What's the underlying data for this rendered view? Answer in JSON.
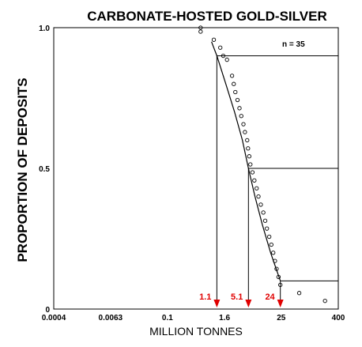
{
  "chart_data": {
    "type": "scatter",
    "title": "CARBONATE-HOSTED GOLD-SILVER",
    "xlabel": "MILLION TONNES",
    "ylabel": "PROPORTION OF DEPOSITS",
    "x_scale": "log",
    "xlim": [
      0.0004,
      400
    ],
    "ylim": [
      0,
      1
    ],
    "x_ticks": [
      "0.0004",
      "0.0063",
      "0.1",
      "1.6",
      "25",
      "400"
    ],
    "y_ticks": [
      "0",
      "0.5",
      "1.0"
    ],
    "n_label": "n = 35",
    "observed_points": [
      {
        "x": 0.5,
        "y": 1.0
      },
      {
        "x": 0.5,
        "y": 0.986
      },
      {
        "x": 0.95,
        "y": 0.957
      },
      {
        "x": 1.3,
        "y": 0.929
      },
      {
        "x": 1.5,
        "y": 0.9
      },
      {
        "x": 1.8,
        "y": 0.886
      },
      {
        "x": 2.3,
        "y": 0.829
      },
      {
        "x": 2.5,
        "y": 0.8
      },
      {
        "x": 2.7,
        "y": 0.771
      },
      {
        "x": 3.0,
        "y": 0.743
      },
      {
        "x": 3.3,
        "y": 0.714
      },
      {
        "x": 3.6,
        "y": 0.686
      },
      {
        "x": 4.0,
        "y": 0.657
      },
      {
        "x": 4.3,
        "y": 0.629
      },
      {
        "x": 4.8,
        "y": 0.6
      },
      {
        "x": 5.0,
        "y": 0.571
      },
      {
        "x": 5.3,
        "y": 0.543
      },
      {
        "x": 5.6,
        "y": 0.514
      },
      {
        "x": 6.2,
        "y": 0.486
      },
      {
        "x": 6.8,
        "y": 0.457
      },
      {
        "x": 7.6,
        "y": 0.429
      },
      {
        "x": 8.3,
        "y": 0.4
      },
      {
        "x": 9.3,
        "y": 0.371
      },
      {
        "x": 10.5,
        "y": 0.343
      },
      {
        "x": 11.5,
        "y": 0.314
      },
      {
        "x": 12.5,
        "y": 0.286
      },
      {
        "x": 14.0,
        "y": 0.257
      },
      {
        "x": 15.5,
        "y": 0.229
      },
      {
        "x": 17.0,
        "y": 0.2
      },
      {
        "x": 18.5,
        "y": 0.171
      },
      {
        "x": 20.0,
        "y": 0.143
      },
      {
        "x": 22.0,
        "y": 0.114
      },
      {
        "x": 24.0,
        "y": 0.086
      },
      {
        "x": 60.0,
        "y": 0.057
      },
      {
        "x": 210.0,
        "y": 0.029
      }
    ],
    "fitted_curve": [
      {
        "x": 0.85,
        "y": 0.95
      },
      {
        "x": 1.1,
        "y": 0.9
      },
      {
        "x": 1.7,
        "y": 0.8
      },
      {
        "x": 2.6,
        "y": 0.7
      },
      {
        "x": 3.8,
        "y": 0.6
      },
      {
        "x": 5.1,
        "y": 0.5
      },
      {
        "x": 7.0,
        "y": 0.4
      },
      {
        "x": 10.0,
        "y": 0.3
      },
      {
        "x": 15.0,
        "y": 0.2
      },
      {
        "x": 24.0,
        "y": 0.1
      }
    ],
    "percentiles": [
      {
        "label": "1.1",
        "x": 1.1,
        "y": 0.9
      },
      {
        "label": "5.1",
        "x": 5.1,
        "y": 0.5
      },
      {
        "label": "24",
        "x": 24,
        "y": 0.1
      }
    ],
    "arrow_color": "#e00000"
  }
}
